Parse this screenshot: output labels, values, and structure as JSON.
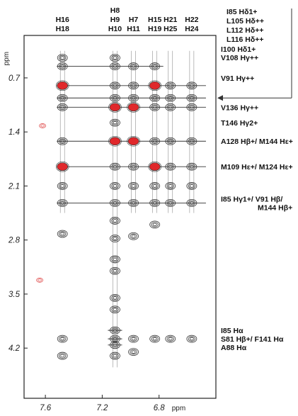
{
  "colors": {
    "frame": "#222222",
    "contour": "#333333",
    "peak": "#e0282b",
    "negative": "#e05050",
    "line": "#333333"
  },
  "chart_data": {
    "type": "heatmap",
    "title": "",
    "x_unit": "ppm",
    "y_unit": "ppm",
    "xlim": [
      7.75,
      6.4
    ],
    "ylim": [
      0.15,
      4.85
    ],
    "x_ticks": [
      {
        "value": 7.6,
        "label": "7.6"
      },
      {
        "value": 7.2,
        "label": "7.2"
      },
      {
        "value": 6.8,
        "label": "6.8"
      }
    ],
    "y_ticks": [
      {
        "value": 0.7,
        "label": "0.7"
      },
      {
        "value": 1.4,
        "label": "1.4"
      },
      {
        "value": 2.1,
        "label": "2.1"
      },
      {
        "value": 2.8,
        "label": "2.8"
      },
      {
        "value": 3.5,
        "label": "3.5"
      },
      {
        "value": 4.2,
        "label": "4.2"
      }
    ],
    "columns": [
      {
        "x": 7.48,
        "labels": [
          "H16",
          "H18"
        ]
      },
      {
        "x": 7.11,
        "labels": [
          "H8",
          "H9",
          "H10"
        ]
      },
      {
        "x": 6.98,
        "labels": [
          "H7",
          "H11"
        ]
      },
      {
        "x": 6.83,
        "labels": [
          "H15",
          "H19"
        ]
      },
      {
        "x": 6.72,
        "labels": [
          "H21",
          "H25"
        ]
      },
      {
        "x": 6.57,
        "labels": [
          "H22",
          "H24"
        ]
      }
    ],
    "row_labels": [
      {
        "y": 0.38,
        "lines": [
          "I100 Hδ1+",
          "V108 Hγ++"
        ]
      },
      {
        "y": 0.7,
        "lines": [
          "V91 Hγ++"
        ]
      },
      {
        "y": 1.08,
        "lines": [
          "V136 Hγ++"
        ]
      },
      {
        "y": 1.28,
        "lines": [
          "T146 Hγ2+"
        ]
      },
      {
        "y": 1.52,
        "lines": [
          "A128 Hβ+/ M144 Hε+"
        ]
      },
      {
        "y": 1.85,
        "lines": [
          "M109 Hε+/ M124 Hε+"
        ]
      },
      {
        "y": 2.32,
        "lines": [
          "I85 Hγ1+/ V91 Hβ/",
          "M144 Hβ+"
        ]
      },
      {
        "y": 4.08,
        "lines": [
          "I85 Hα",
          "S81 Hβ+/ F141 Hα",
          "A88 Hα"
        ]
      }
    ],
    "top_right_labels": [
      "I85 Hδ1+",
      "L105 Hδ++",
      "L112 Hδ++",
      "L116 Hδ++"
    ],
    "arrow_target_y": 0.96,
    "cross_lines": [
      {
        "y": 0.55,
        "x_from": 7.52,
        "x_to": 6.77
      },
      {
        "y": 0.8,
        "x_from": 7.52,
        "x_to": 6.47
      },
      {
        "y": 0.96,
        "x_from": 7.52,
        "x_to": 6.47
      },
      {
        "y": 1.08,
        "x_from": 7.52,
        "x_to": 6.47
      },
      {
        "y": 1.52,
        "x_from": 7.52,
        "x_to": 6.47
      },
      {
        "y": 1.85,
        "x_from": 7.52,
        "x_to": 6.47
      },
      {
        "y": 2.32,
        "x_from": 7.52,
        "x_to": 6.47
      },
      {
        "y": 3.97,
        "x_from": 7.16,
        "x_to": 7.06
      },
      {
        "y": 4.08,
        "x_from": 7.16,
        "x_to": 7.06
      },
      {
        "y": 4.16,
        "x_from": 7.16,
        "x_to": 7.06
      }
    ],
    "peaks": [
      {
        "x": 7.48,
        "y": 0.44
      },
      {
        "x": 7.48,
        "y": 0.55
      },
      {
        "x": 7.48,
        "y": 0.8,
        "hl": true
      },
      {
        "x": 7.48,
        "y": 0.96
      },
      {
        "x": 7.48,
        "y": 1.08
      },
      {
        "x": 7.48,
        "y": 1.52
      },
      {
        "x": 7.48,
        "y": 1.85,
        "hl": true
      },
      {
        "x": 7.48,
        "y": 2.1
      },
      {
        "x": 7.48,
        "y": 2.32
      },
      {
        "x": 7.48,
        "y": 2.72
      },
      {
        "x": 7.48,
        "y": 4.08
      },
      {
        "x": 7.48,
        "y": 4.3
      },
      {
        "x": 7.11,
        "y": 0.44
      },
      {
        "x": 7.11,
        "y": 0.55
      },
      {
        "x": 7.11,
        "y": 0.8
      },
      {
        "x": 7.11,
        "y": 0.96
      },
      {
        "x": 7.11,
        "y": 1.08,
        "hl": true
      },
      {
        "x": 7.11,
        "y": 1.28
      },
      {
        "x": 7.11,
        "y": 1.52,
        "hl": true
      },
      {
        "x": 7.11,
        "y": 1.85
      },
      {
        "x": 7.11,
        "y": 2.1
      },
      {
        "x": 7.11,
        "y": 2.32
      },
      {
        "x": 7.11,
        "y": 2.55
      },
      {
        "x": 7.11,
        "y": 2.78
      },
      {
        "x": 7.11,
        "y": 3.05
      },
      {
        "x": 7.11,
        "y": 3.2
      },
      {
        "x": 7.11,
        "y": 3.55
      },
      {
        "x": 7.11,
        "y": 3.7
      },
      {
        "x": 7.11,
        "y": 3.97
      },
      {
        "x": 7.11,
        "y": 4.08
      },
      {
        "x": 7.11,
        "y": 4.16
      },
      {
        "x": 7.11,
        "y": 4.3
      },
      {
        "x": 6.98,
        "y": 0.55
      },
      {
        "x": 6.98,
        "y": 0.8
      },
      {
        "x": 6.98,
        "y": 0.96
      },
      {
        "x": 6.98,
        "y": 1.08,
        "hl": true
      },
      {
        "x": 6.98,
        "y": 1.52,
        "hl": true
      },
      {
        "x": 6.98,
        "y": 1.85
      },
      {
        "x": 6.98,
        "y": 2.1
      },
      {
        "x": 6.98,
        "y": 2.32
      },
      {
        "x": 6.98,
        "y": 2.75
      },
      {
        "x": 6.98,
        "y": 4.08
      },
      {
        "x": 6.98,
        "y": 4.25
      },
      {
        "x": 6.83,
        "y": 0.55
      },
      {
        "x": 6.83,
        "y": 0.8,
        "hl": true
      },
      {
        "x": 6.83,
        "y": 0.96
      },
      {
        "x": 6.83,
        "y": 1.08
      },
      {
        "x": 6.83,
        "y": 1.52
      },
      {
        "x": 6.83,
        "y": 1.85,
        "hl": true
      },
      {
        "x": 6.83,
        "y": 2.1
      },
      {
        "x": 6.83,
        "y": 2.32
      },
      {
        "x": 6.83,
        "y": 2.6
      },
      {
        "x": 6.83,
        "y": 4.08
      },
      {
        "x": 6.72,
        "y": 0.8
      },
      {
        "x": 6.72,
        "y": 0.96
      },
      {
        "x": 6.72,
        "y": 1.08
      },
      {
        "x": 6.72,
        "y": 1.52
      },
      {
        "x": 6.72,
        "y": 1.85
      },
      {
        "x": 6.72,
        "y": 2.1
      },
      {
        "x": 6.72,
        "y": 2.32
      },
      {
        "x": 6.72,
        "y": 4.08
      },
      {
        "x": 6.57,
        "y": 0.8
      },
      {
        "x": 6.57,
        "y": 0.96
      },
      {
        "x": 6.57,
        "y": 1.08
      },
      {
        "x": 6.57,
        "y": 1.52
      },
      {
        "x": 6.57,
        "y": 1.85
      },
      {
        "x": 6.57,
        "y": 2.1
      },
      {
        "x": 6.57,
        "y": 2.32
      },
      {
        "x": 6.57,
        "y": 4.08
      }
    ],
    "negative_peaks": [
      {
        "x": 7.62,
        "y": 1.32
      },
      {
        "x": 7.64,
        "y": 3.32
      }
    ]
  }
}
